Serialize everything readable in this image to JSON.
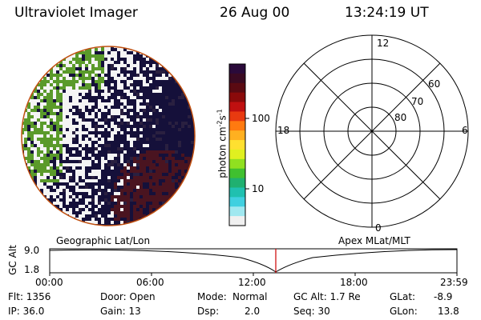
{
  "header": {
    "instrument": "Ultraviolet Imager",
    "date": "26 Aug 00",
    "time": "13:24:19 UT"
  },
  "colorbar": {
    "unit_label": "photon cm",
    "unit_exp1": "-2",
    "unit_s": "s",
    "unit_exp2": "-1",
    "ticks": [
      "100",
      "10"
    ],
    "colors": [
      "#2a0a3a",
      "#3a0a22",
      "#5a0a12",
      "#8a0a0a",
      "#c01010",
      "#e83a10",
      "#ff7a10",
      "#ffb020",
      "#ffe030",
      "#e0f020",
      "#90e020",
      "#40c030",
      "#20b070",
      "#20c0b0",
      "#40d0e0",
      "#a0e8f0",
      "#f0f0f0"
    ]
  },
  "polar": {
    "labels": {
      "top": "12",
      "bottom": "0",
      "left": "18",
      "right": "6"
    },
    "ring_labels": [
      "80",
      "70",
      "60"
    ]
  },
  "timeline": {
    "left_label": "Geographic Lat/Lon",
    "right_label": "Apex MLat/MLT",
    "axis_label": "GC Alt",
    "y_top": "9.0",
    "y_bottom": "1.8",
    "time_ticks": [
      "00:00",
      "06:00",
      "12:00",
      "18:00",
      "23:59"
    ],
    "marker_color": "#cc0000"
  },
  "info": {
    "flt": "Flt: 1356",
    "ip": "IP: 36.0",
    "door": "Door: Open",
    "gain": "Gain: 13",
    "mode_label": "Mode:",
    "mode_value": "Normal",
    "dsp_label": "Dsp:",
    "dsp_value": "2.0",
    "gcalt": "GC Alt: 1.7 Re",
    "seq": "Seq: 30",
    "glat_label": "GLat:",
    "glat_value": "-8.9",
    "glon_label": "GLon:",
    "glon_value": "13.8"
  }
}
